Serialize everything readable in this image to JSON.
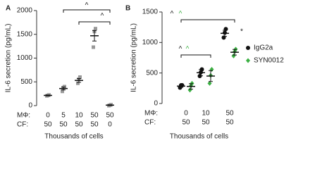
{
  "chart_data": [
    {
      "type": "dot",
      "panel": "A",
      "ylabel": "IL-6 secretion (pg/mL)",
      "xlabel": "Thousands of cells",
      "ylim": [
        0,
        2000
      ],
      "yticks": [
        0,
        500,
        1000,
        1500,
        2000
      ],
      "category_rows": [
        {
          "label": "MΦ:",
          "labels": [
            "0",
            "5",
            "10",
            "50",
            "50"
          ]
        },
        {
          "label": "CF:",
          "labels": [
            "50",
            "50",
            "50",
            "50",
            "0"
          ]
        }
      ],
      "series": [
        {
          "color": "#999999",
          "marker": "square",
          "values": [
            215,
            360,
            530,
            1470,
            10
          ],
          "errors": [
            10,
            30,
            40,
            110,
            8
          ],
          "points": [
            [
              205,
              215,
              225
            ],
            [
              300,
              380,
              400
            ],
            [
              470,
              560,
              600
            ],
            [
              1230,
              1560,
              1620
            ],
            [
              0,
              10,
              20
            ]
          ]
        }
      ],
      "annotations": [
        "^",
        "^"
      ]
    },
    {
      "type": "dot",
      "panel": "B",
      "ylabel": "IL-6 secretion (pg/mL)",
      "xlabel": "Thousands of cells",
      "ylim": [
        0,
        1500
      ],
      "yticks": [
        0,
        500,
        1000,
        1500
      ],
      "category_rows": [
        {
          "label": "MΦ:",
          "labels": [
            "0",
            "10",
            "50"
          ]
        },
        {
          "label": "CF:",
          "labels": [
            "50",
            "50",
            "50"
          ]
        }
      ],
      "series": [
        {
          "name": "IgG2a",
          "color": "#111111",
          "marker": "circle",
          "values": [
            285,
            505,
            1150
          ],
          "errors": [
            20,
            50,
            50
          ],
          "points": [
            [
              260,
              300,
              300
            ],
            [
              450,
              510,
              560
            ],
            [
              1080,
              1160,
              1220
            ]
          ]
        },
        {
          "name": "SYN0012",
          "color": "#3cb043",
          "marker": "diamond",
          "values": [
            280,
            450,
            840
          ],
          "errors": [
            45,
            90,
            45
          ],
          "points": [
            [
              220,
              290,
              330
            ],
            [
              330,
              460,
              560
            ],
            [
              780,
              850,
              890
            ]
          ]
        }
      ],
      "annotations": [
        "^",
        "^",
        "^",
        "^",
        "*"
      ]
    }
  ]
}
